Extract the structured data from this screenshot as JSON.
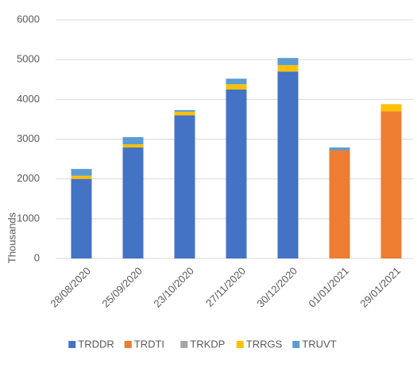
{
  "chart_data": {
    "type": "stacked_bar",
    "y_label": "Thousands",
    "categories": [
      "28/08/2020",
      "25/09/2020",
      "23/10/2020",
      "27/11/2020",
      "30/12/2020",
      "01/01/2021",
      "29/01/2021"
    ],
    "series": [
      {
        "name": "TRDDR",
        "color": "#4472c4",
        "values": [
          2000,
          2790,
          3600,
          4250,
          4700,
          0,
          0
        ]
      },
      {
        "name": "TRDTI",
        "color": "#ed7d31",
        "values": [
          0,
          0,
          0,
          0,
          0,
          2720,
          3700
        ]
      },
      {
        "name": "TRKDP",
        "color": "#a5a5a5",
        "values": [
          0,
          0,
          0,
          0,
          0,
          0,
          0
        ]
      },
      {
        "name": "TRRGS",
        "color": "#ffc000",
        "values": [
          80,
          80,
          90,
          130,
          160,
          0,
          180
        ]
      },
      {
        "name": "TRUVT",
        "color": "#5b9bd5",
        "values": [
          170,
          180,
          40,
          140,
          180,
          70,
          0
        ]
      }
    ],
    "ylim": [
      0,
      6000
    ],
    "yticks": [
      0,
      1000,
      2000,
      3000,
      4000,
      5000,
      6000
    ],
    "grid": true,
    "legend": "bottom"
  }
}
